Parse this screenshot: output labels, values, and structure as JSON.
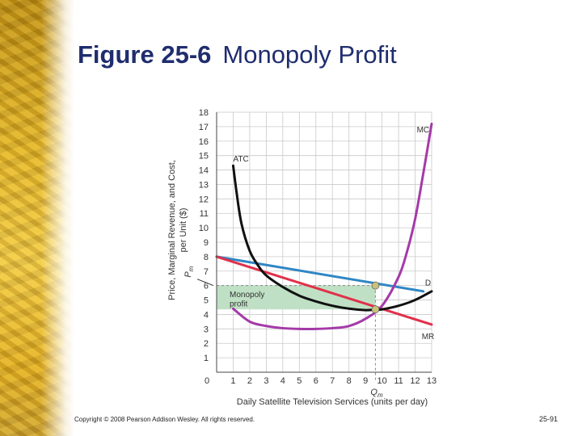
{
  "slide": {
    "title_number": "Figure 25-6",
    "title_text": "Monopoly Profit",
    "copyright": "Copyright © 2008 Pearson Addison Wesley. All rights reserved.",
    "page_number": "25-91",
    "background_colors": {
      "gold": "#e2b52a",
      "title": "#1f2d6e"
    }
  },
  "chart_data": {
    "type": "line",
    "title": "Monopoly Profit",
    "xlabel": "Daily Satellite Television Services (units per day)",
    "ylabel": "Price, Marginal Revenue, and Cost per Unit ($)",
    "xlim": [
      0,
      13
    ],
    "ylim": [
      0,
      18
    ],
    "xticks": [
      0,
      1,
      2,
      3,
      4,
      5,
      6,
      7,
      8,
      9,
      10,
      11,
      12,
      13
    ],
    "yticks": [
      1,
      2,
      3,
      4,
      5,
      6,
      7,
      8,
      9,
      10,
      11,
      12,
      13,
      14,
      15,
      16,
      17,
      18
    ],
    "grid": true,
    "series": [
      {
        "name": "D",
        "color": "#2f86c4",
        "x": [
          0,
          12.5
        ],
        "y": [
          8,
          5.6
        ]
      },
      {
        "name": "MR",
        "color": "#e0304a",
        "x": [
          0,
          13
        ],
        "y": [
          8,
          3.3
        ]
      },
      {
        "name": "MC",
        "color": "#a43aa8",
        "x": [
          1,
          2,
          3,
          4,
          5,
          6,
          7,
          8,
          9,
          10,
          11,
          11.5,
          12,
          12.5,
          13
        ],
        "y": [
          4.4,
          3.5,
          3.2,
          3.05,
          3.0,
          3.0,
          3.05,
          3.2,
          3.7,
          4.6,
          6.6,
          8.3,
          10.6,
          13.8,
          17.2
        ]
      },
      {
        "name": "ATC",
        "color": "#111111",
        "x": [
          1,
          1.2,
          1.5,
          2,
          2.5,
          3,
          4,
          5,
          6,
          7,
          8,
          9,
          9.5,
          10,
          11,
          12,
          13
        ],
        "y": [
          14.3,
          12.5,
          10.3,
          8.4,
          7.4,
          6.7,
          5.9,
          5.3,
          4.9,
          4.6,
          4.4,
          4.3,
          4.32,
          4.35,
          4.6,
          5.0,
          5.6
        ]
      }
    ],
    "monopoly_profit_region": {
      "label": "Monopoly profit",
      "x0": 0,
      "x1": 9.6,
      "y_price": 6.0,
      "y_atc": 4.35,
      "color": "#bfe0c4"
    },
    "equilibrium": {
      "quantity": 9.6,
      "price": 6.0,
      "atc": 4.35,
      "mr_mc": 4.3,
      "price_label": "P",
      "price_subscript": "m",
      "quantity_label": "Q",
      "quantity_subscript": "m"
    },
    "curve_labels": [
      "MC",
      "ATC",
      "D",
      "MR"
    ]
  }
}
